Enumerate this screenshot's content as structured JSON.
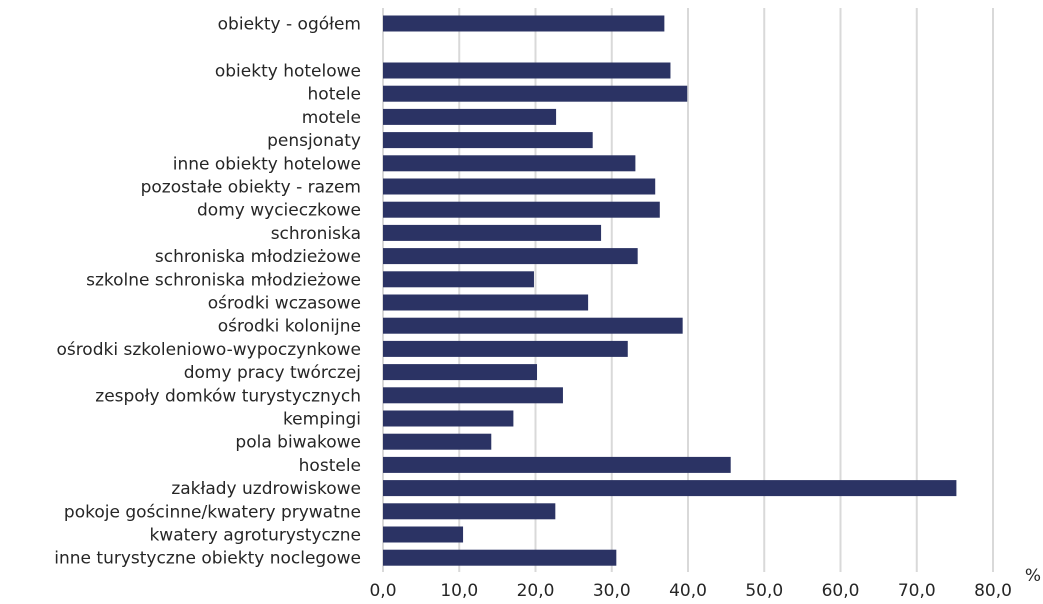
{
  "chart_data": {
    "type": "bar",
    "orientation": "horizontal",
    "categories": [
      "obiekty - ogółem",
      "obiekty hotelowe",
      "hotele",
      "motele",
      "pensjonaty",
      "inne obiekty hotelowe",
      "pozostałe obiekty - razem",
      "domy wycieczkowe",
      "schroniska",
      "schroniska młodzieżowe",
      "szkolne schroniska młodzieżowe",
      "ośrodki wczasowe",
      "ośrodki kolonijne",
      "ośrodki szkoleniowo-wypoczynkowe",
      "domy pracy twórczej",
      "zespoły domków turystycznych",
      "kempingi",
      "pola biwakowe",
      "hostele",
      "zakłady uzdrowiskowe",
      "pokoje gościnne/kwatery prywatne",
      "kwatery agroturystyczne",
      "inne turystyczne obiekty noclegowe"
    ],
    "values": [
      36.9,
      37.7,
      39.9,
      22.7,
      27.5,
      33.1,
      35.7,
      36.3,
      28.6,
      33.4,
      19.8,
      26.9,
      39.3,
      32.1,
      20.2,
      23.6,
      17.1,
      14.2,
      45.6,
      75.2,
      22.6,
      10.5,
      30.6
    ],
    "xlim": [
      0,
      80
    ],
    "xticks": [
      "0,0",
      "10,0",
      "20,0",
      "30,0",
      "40,0",
      "50,0",
      "60,0",
      "70,0",
      "80,0"
    ],
    "xunit": "%",
    "grid": "vertical",
    "bar_color": "#2b3364",
    "grid_color": "#d9d9d9"
  }
}
